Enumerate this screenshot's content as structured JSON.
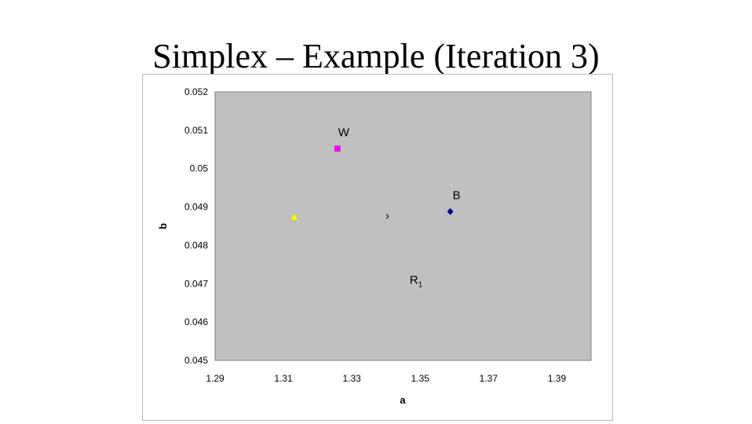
{
  "slide": {
    "title": "Simplex – Example (Iteration 3)"
  },
  "chart_data": {
    "type": "scatter",
    "xlabel": "a",
    "ylabel": "b",
    "xlim": [
      1.29,
      1.4
    ],
    "ylim": [
      0.045,
      0.052
    ],
    "x_ticks": [
      1.29,
      1.31,
      1.33,
      1.35,
      1.37,
      1.39
    ],
    "x_tick_labels": [
      "1.29",
      "1.31",
      "1.33",
      "1.35",
      "1.37",
      "1.39"
    ],
    "y_ticks": [
      0.045,
      0.046,
      0.047,
      0.048,
      0.049,
      0.05,
      0.051,
      0.052
    ],
    "y_tick_labels": [
      "0.045",
      "0.046",
      "0.047",
      "0.048",
      "0.049",
      "0.05",
      "0.051",
      "0.052"
    ],
    "grid": false,
    "plot_background": "#c0c0c0",
    "points": [
      {
        "label": "W",
        "x": 1.3258,
        "y": 0.05052,
        "marker": "square",
        "color": "#ff00ff"
      },
      {
        "label": "B",
        "x": 1.3588,
        "y": 0.04888,
        "marker": "diamond",
        "color": "#000080"
      },
      {
        "label": "",
        "x": 1.3132,
        "y": 0.04874,
        "marker": "triangle",
        "color": "#ffff00"
      }
    ],
    "annotations": [
      {
        "text": "R",
        "subscript": "1",
        "x": 1.3488,
        "y": 0.0471
      },
      {
        "text": "›",
        "x": 1.3404,
        "y": 0.04878
      }
    ]
  }
}
